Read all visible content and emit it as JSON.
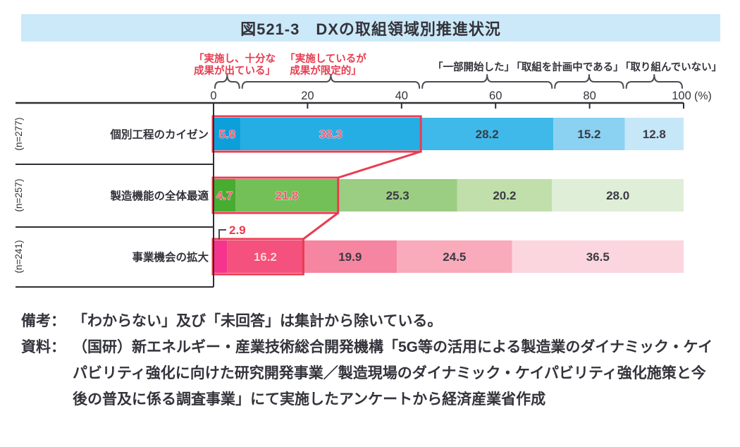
{
  "figure": {
    "title": "図521-3　DXの取組領域別推進状況"
  },
  "legend": {
    "red": [
      [
        "「実施し、十分な",
        "成果が出ている」"
      ],
      [
        "「実施しているが",
        "成果が限定的」"
      ]
    ],
    "black": [
      "「一部開始した」",
      "「取組を計画中である」",
      "「取り組んでいない」"
    ]
  },
  "axis": {
    "tick_labels": [
      "0",
      "20",
      "40",
      "60",
      "80",
      "100"
    ],
    "tick_values": [
      0,
      20,
      40,
      60,
      80,
      100
    ],
    "unit": "(%)"
  },
  "chart_data": {
    "type": "bar",
    "stacked": true,
    "orientation": "horizontal",
    "unit": "%",
    "xlim": [
      0,
      100
    ],
    "categories": [
      "個別工程のカイゼン",
      "製造機能の全体最適",
      "事業機会の拡大"
    ],
    "sample_sizes": [
      "(n=277)",
      "(n=257)",
      "(n=241)"
    ],
    "series": [
      {
        "name": "実施し、十分な成果が出ている",
        "values": [
          5.8,
          4.7,
          2.9
        ],
        "display": [
          "5.8",
          "4.7",
          "2.9"
        ]
      },
      {
        "name": "実施しているが成果が限定的",
        "values": [
          38.3,
          21.8,
          16.2
        ],
        "display": [
          "38.3",
          "21.8",
          "16.2"
        ]
      },
      {
        "name": "一部開始した",
        "values": [
          28.2,
          25.3,
          19.9
        ],
        "display": [
          "28.2",
          "25.3",
          "19.9"
        ]
      },
      {
        "name": "取組を計画中である",
        "values": [
          15.2,
          20.2,
          24.5
        ],
        "display": [
          "15.2",
          "20.2",
          "24.5"
        ]
      },
      {
        "name": "取り組んでいない",
        "values": [
          12.8,
          28.0,
          36.5
        ],
        "display": [
          "12.8",
          "28.0",
          "36.5"
        ]
      }
    ],
    "row_colors": [
      [
        "#0c9fda",
        "#25aee4",
        "#3fb9e9",
        "#8bd1f1",
        "#c6e7f8"
      ],
      [
        "#47ac30",
        "#73c058",
        "#9bcd82",
        "#c0dfaa",
        "#dfeed6"
      ],
      [
        "#f5348d",
        "#f4517e",
        "#f685a1",
        "#f9aabb",
        "#fcd6de"
      ]
    ],
    "highlight_note": "first two segments of each bar outlined in red and connected across bars",
    "callout": {
      "row_index": 2,
      "segment_index": 0
    }
  },
  "notes": [
    {
      "label": "備考：",
      "text": "「わからない」及び「未回答」は集計から除いている。"
    },
    {
      "label": "資料：",
      "text": "（国研）新エネルギー・産業技術総合開発機構「5G等の活用による製造業のダイナミック・ケイパビリティ強化に向けた研究開発事業／製造現場のダイナミック・ケイパビリティ強化施策と今後の普及に係る調査事業」にて実施したアンケートから経済産業省作成"
    }
  ],
  "colors": {
    "title_bg": "#cbe9f8",
    "text": "#33333b",
    "red": "#e83c50",
    "axis_line": "#2e2e34",
    "brace": "#4b4b52",
    "dark_value": "#3b3b44",
    "highlight_value": "#f0586e",
    "light_value": "#fbd9da",
    "light_value_stroke": "#ef4060"
  }
}
